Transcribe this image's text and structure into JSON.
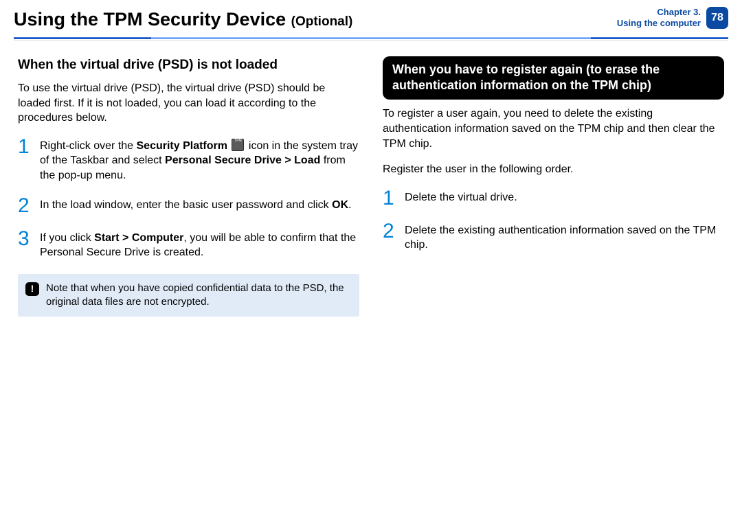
{
  "colors": {
    "link_blue": "#0b4aa2",
    "step_blue": "#0083d6",
    "note_bg": "#e1ebf7",
    "rule_light": "#a0c6ff",
    "rule_dark": "#0b4aa2"
  },
  "header": {
    "title_main": "Using the TPM Security Device",
    "title_suffix": "(Optional)",
    "chapter_line1": "Chapter 3.",
    "chapter_line2": "Using the computer",
    "page_number": "78"
  },
  "left": {
    "heading": "When the virtual drive (PSD) is not loaded",
    "intro": "To use the virtual drive (PSD), the virtual drive (PSD) should be loaded first. If it is not loaded, you can load it according to the procedures below.",
    "step1_a": "Right-click over the ",
    "step1_b_bold": "Security Platform",
    "step1_c": " icon in the system tray of the Taskbar and select ",
    "step1_d_bold": "Personal Secure Drive > Load",
    "step1_e": " from the pop-up menu.",
    "step2_a": "In the load window, enter the basic user password and click ",
    "step2_b_bold": "OK",
    "step2_c": ".",
    "step3_a": "If you click ",
    "step3_b_bold": "Start > Computer",
    "step3_c": ", you will be able to confirm that the Personal Secure Drive is created.",
    "note": "Note that when you have copied confidential data to the PSD, the original data files are not encrypted."
  },
  "right": {
    "invert_heading": "When you have to register again (to erase the authentication information on the TPM chip)",
    "intro": "To register a user again, you need to delete the existing authentication information saved on the TPM chip and then clear the TPM chip.",
    "order_line": "Register the user in the following order.",
    "step1": "Delete the virtual drive.",
    "step2": "Delete the existing authentication information saved on the TPM chip."
  }
}
